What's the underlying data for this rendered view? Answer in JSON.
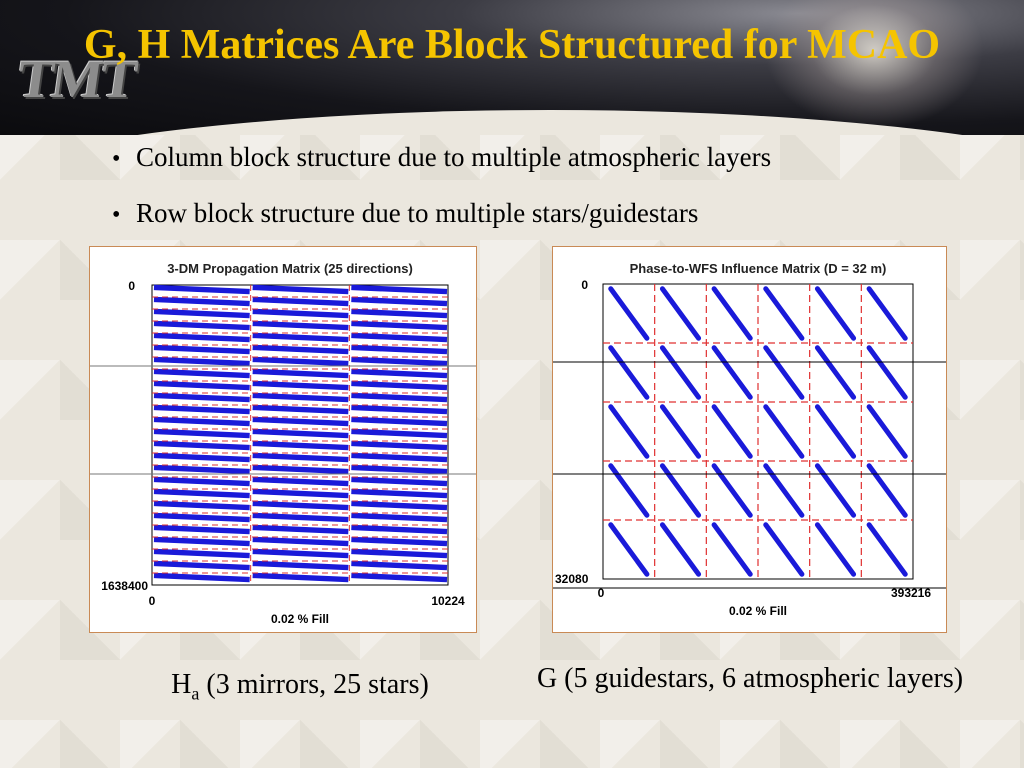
{
  "slide": {
    "title": "G, H Matrices Are Block Structured for MCAO",
    "logo_text": "TMT",
    "bullets": [
      "Column block structure due to multiple atmospheric layers",
      "Row block structure due to multiple stars/guidestars"
    ]
  },
  "left_figure": {
    "title": "3-DM Propagation Matrix (25 directions)",
    "y_top_label": "0",
    "y_bottom_label": "1638400",
    "x_left_label": "0",
    "x_right_label": "10224",
    "fill_label": "0.02 % Fill",
    "caption_main": "H",
    "caption_sub": "a",
    "caption_rest": " (3 mirrors, 25 stars)",
    "colors": {
      "data": "#1a1ad9",
      "grid": "#e03030"
    }
  },
  "right_figure": {
    "title": "Phase-to-WFS Influence Matrix (D = 32 m)",
    "y_top_label": "0",
    "y_bottom_label": "32080",
    "x_left_label": "0",
    "x_right_label": "393216",
    "fill_label": "0.02 % Fill",
    "caption": "G (5 guidestars, 6 atmospheric layers)",
    "colors": {
      "data": "#1a1ad9",
      "grid": "#e03030"
    }
  },
  "chart_data": [
    {
      "type": "heatmap",
      "title": "3-DM Propagation Matrix (25 directions)",
      "xlim": [
        0,
        10224
      ],
      "ylim": [
        0,
        1638400
      ],
      "row_blocks": 25,
      "column_blocks": 3,
      "fill_percent": 0.02
    },
    {
      "type": "heatmap",
      "title": "Phase-to-WFS Influence Matrix (D = 32 m)",
      "xlim": [
        0,
        393216
      ],
      "ylim": [
        0,
        32080
      ],
      "row_blocks": 5,
      "column_blocks": 6,
      "fill_percent": 0.02
    }
  ]
}
